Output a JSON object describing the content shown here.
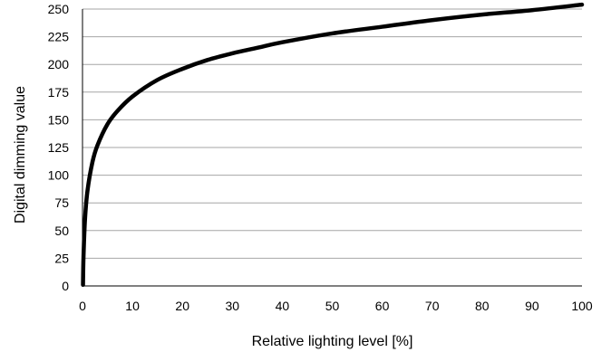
{
  "chart_data": {
    "type": "line",
    "title": "",
    "xlabel": "Relative lighting level [%]",
    "ylabel": "Digital dimming value",
    "xlim": [
      0,
      100
    ],
    "ylim": [
      0,
      250
    ],
    "x_ticks": [
      "0",
      "10",
      "20",
      "30",
      "40",
      "50",
      "60",
      "70",
      "80",
      "90",
      "100"
    ],
    "y_ticks": [
      "0",
      "25",
      "50",
      "75",
      "100",
      "125",
      "150",
      "175",
      "200",
      "225",
      "250"
    ],
    "grid": "horizontal",
    "legend": "none",
    "series": [
      {
        "color": "#000000",
        "x": [
          0.1,
          0.2,
          0.5,
          1,
          2,
          3,
          5,
          7,
          10,
          15,
          20,
          25,
          30,
          35,
          40,
          50,
          60,
          70,
          80,
          90,
          100
        ],
        "y": [
          1,
          26,
          60,
          86,
          112,
          127,
          146,
          158,
          171,
          186,
          196,
          204,
          210,
          215,
          220,
          228,
          234,
          240,
          245,
          249,
          254
        ]
      }
    ]
  }
}
